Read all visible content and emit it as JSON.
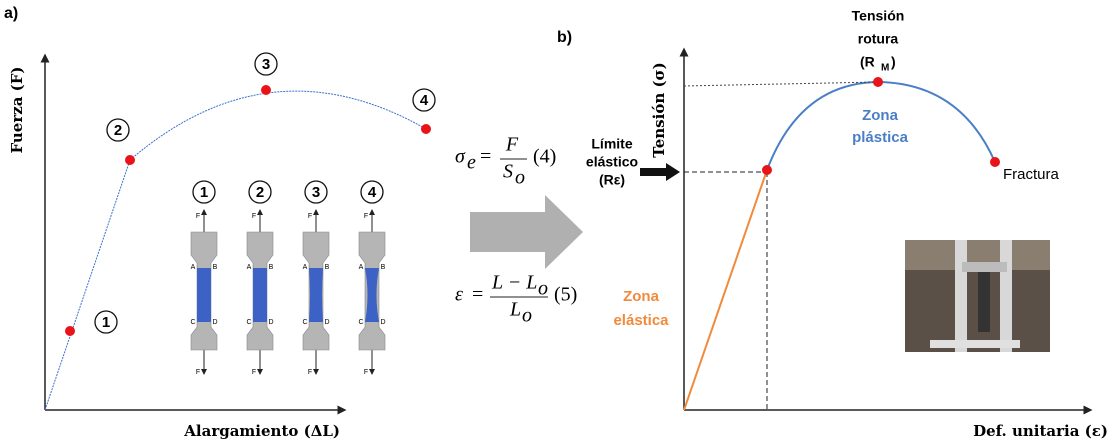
{
  "panel_a": {
    "label": "a)",
    "y_axis": "Fuerza (F)",
    "x_axis": "Alargamiento (ΔL)",
    "points": [
      "1",
      "2",
      "3",
      "4"
    ],
    "specimens": [
      {
        "label": "1",
        "top": "F",
        "bottom": "F",
        "a": "A",
        "b": "B",
        "c": "C",
        "d": "D"
      },
      {
        "label": "2",
        "top": "F",
        "bottom": "F",
        "a": "A",
        "b": "B",
        "c": "C",
        "d": "D"
      },
      {
        "label": "3",
        "top": "F",
        "bottom": "F",
        "a": "A",
        "b": "B",
        "c": "C",
        "d": "D"
      },
      {
        "label": "4",
        "top": "F",
        "bottom": "F",
        "a": "A",
        "b": "B",
        "c": "C",
        "d": "D"
      }
    ]
  },
  "formulas": [
    {
      "lhs": "σ",
      "lhs_sub": "e",
      "eq": "=",
      "num": "F",
      "den": "S",
      "den_sub": "o",
      "tag": "(4)"
    },
    {
      "lhs": "ε",
      "eq": "=",
      "num": "L − L",
      "num_sub": "o",
      "den": "L",
      "den_sub": "o",
      "tag": "(5)"
    }
  ],
  "panel_b": {
    "label": "b)",
    "y_axis": "Tensión (σ)",
    "x_axis": "Def. unitaria (ε)",
    "rupture": [
      "Tensión",
      "rotura",
      "(R",
      "M",
      ")"
    ],
    "plastic": [
      "Zona",
      "plástica"
    ],
    "elastic": [
      "Zona",
      "elástica"
    ],
    "yield": [
      "Límite",
      "elástico",
      "(Rε)"
    ],
    "fracture": "Fractura"
  }
}
